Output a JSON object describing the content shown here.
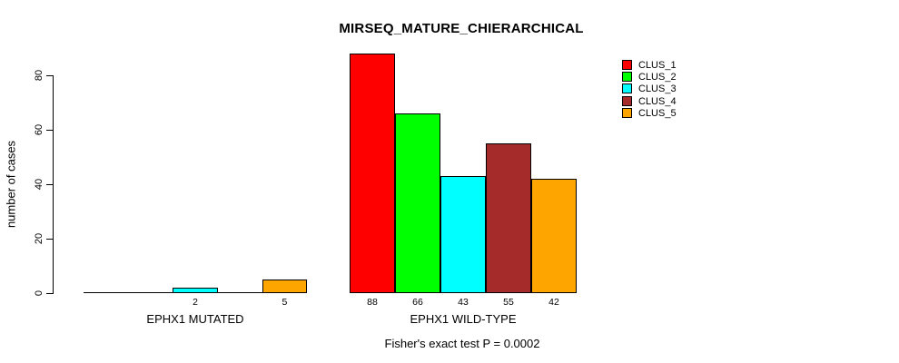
{
  "title": "MIRSEQ_MATURE_CHIERARCHICAL",
  "annotation": "Fisher's exact test P = 0.0002",
  "ylabel": "number of cases",
  "chart_data": {
    "type": "bar",
    "title": "MIRSEQ_MATURE_CHIERARCHICAL",
    "xlabel": "",
    "ylabel": "number of cases",
    "ylim": [
      0,
      88
    ],
    "yticks": [
      0,
      20,
      40,
      60,
      80
    ],
    "grid": false,
    "legend_position": "top-right",
    "categories": [
      "EPHX1 MUTATED",
      "EPHX1 WILD-TYPE"
    ],
    "series": [
      {
        "name": "CLUS_1",
        "color": "#FF0000",
        "values": [
          0,
          88
        ]
      },
      {
        "name": "CLUS_2",
        "color": "#00FF00",
        "values": [
          0,
          66
        ]
      },
      {
        "name": "CLUS_3",
        "color": "#00FFFF",
        "values": [
          2,
          43
        ]
      },
      {
        "name": "CLUS_4",
        "color": "#A52A2A",
        "values": [
          0,
          55
        ]
      },
      {
        "name": "CLUS_5",
        "color": "#FFA500",
        "values": [
          5,
          42
        ]
      }
    ],
    "bar_value_labels": "shown under each nonzero bar",
    "annotation": "Fisher's exact test P = 0.0002"
  }
}
